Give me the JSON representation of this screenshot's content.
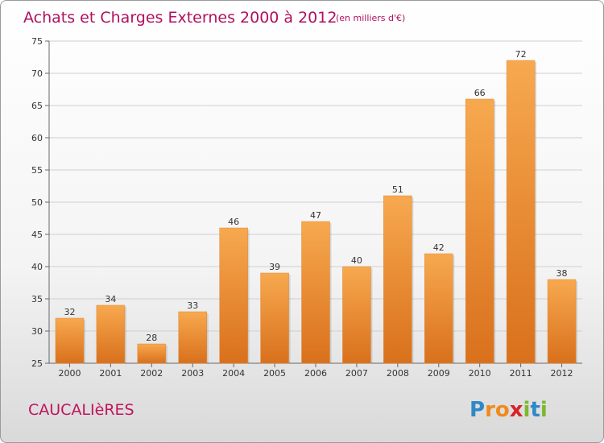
{
  "chart_data": {
    "type": "bar",
    "title": "Achats et Charges Externes 2000 à 2012",
    "subtitle": "(en milliers d'€)",
    "categories": [
      "2000",
      "2001",
      "2002",
      "2003",
      "2004",
      "2005",
      "2006",
      "2007",
      "2008",
      "2009",
      "2010",
      "2011",
      "2012"
    ],
    "values": [
      32,
      34,
      28,
      33,
      46,
      39,
      47,
      40,
      51,
      42,
      66,
      72,
      38
    ],
    "ylim": [
      25,
      75
    ],
    "yticks": [
      25,
      30,
      35,
      40,
      45,
      50,
      55,
      60,
      65,
      70,
      75
    ],
    "grid": true,
    "bar_color_light": "#f7a94f",
    "bar_color_dark": "#d9701c"
  },
  "footer": {
    "commune": "CAUCALIèRES",
    "logo_letters": [
      {
        "ch": "P",
        "color": "#2e89c8"
      },
      {
        "ch": "r",
        "color": "#f08a1c"
      },
      {
        "ch": "o",
        "color": "#f08a1c"
      },
      {
        "ch": "x",
        "color": "#d8232a"
      },
      {
        "ch": "i",
        "color": "#7cb82f"
      },
      {
        "ch": "t",
        "color": "#2e89c8"
      },
      {
        "ch": "i",
        "color": "#7cb82f"
      }
    ]
  }
}
